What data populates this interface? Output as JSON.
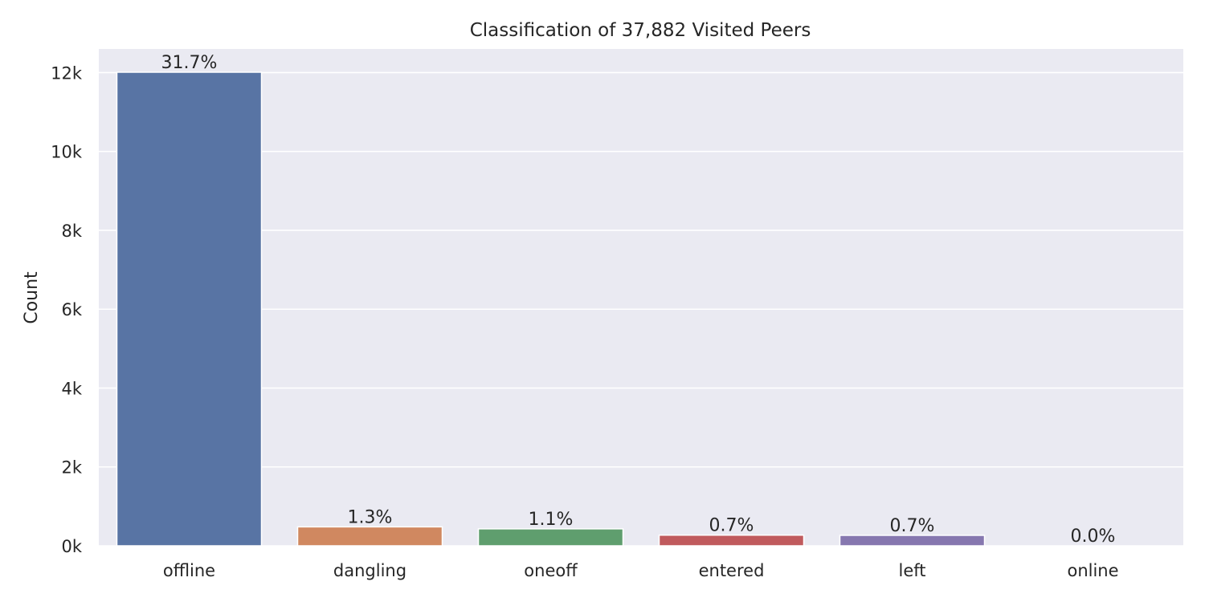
{
  "chart_data": {
    "type": "bar",
    "title": "Classification of 37,882 Visited Peers",
    "xlabel": "",
    "ylabel": "Count",
    "categories": [
      "offline",
      "dangling",
      "oneoff",
      "entered",
      "left",
      "online"
    ],
    "values": [
      12010,
      480,
      430,
      270,
      265,
      0
    ],
    "data_labels": [
      "31.7%",
      "1.3%",
      "1.1%",
      "0.7%",
      "0.7%",
      "0.0%"
    ],
    "colors": [
      "#5874a4",
      "#d08860",
      "#5f9e6e",
      "#c05a5d",
      "#8677af",
      "#937860"
    ],
    "ylim": [
      0,
      12600
    ],
    "yticks": [
      0,
      2000,
      4000,
      6000,
      8000,
      10000,
      12000
    ],
    "ytick_labels": [
      "0k",
      "2k",
      "4k",
      "6k",
      "8k",
      "10k",
      "12k"
    ],
    "grid": true,
    "background": "#eaeaf2",
    "gridline_color": "#ffffff"
  }
}
